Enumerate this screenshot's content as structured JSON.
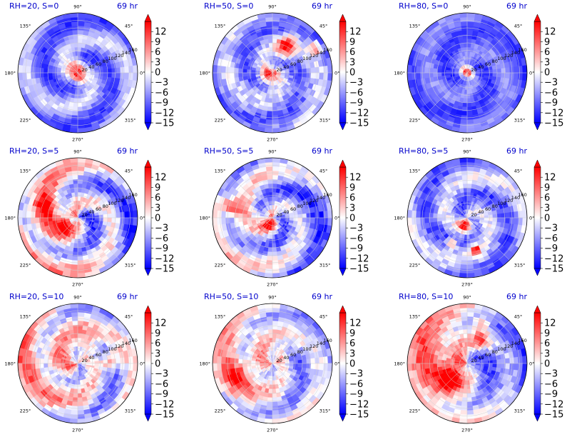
{
  "figure": {
    "title_color": "#0000cc",
    "colormap": [
      "#0000ff",
      "#ffffff",
      "#ff0000"
    ]
  },
  "chart_data": [
    {
      "type": "heatmap",
      "projection": "polar",
      "title_left": "RH=20, S=0",
      "title_right": "69 hr",
      "angle_labels": [
        "90°",
        "45°",
        "0°",
        "315°",
        "270°",
        "225°",
        "180°",
        "135°"
      ],
      "radial_ticks": [
        "20",
        "40",
        "60",
        "80",
        "100",
        "120",
        "140",
        "160"
      ],
      "colorbar": {
        "ticks": [
          12,
          9,
          6,
          3,
          0,
          -3,
          -6,
          -9,
          -12,
          -15
        ],
        "tick_labels": [
          "12",
          "9",
          "6",
          "3",
          "0",
          "−3",
          "−6",
          "−9",
          "−12",
          "−15"
        ],
        "range": [
          -15,
          15
        ],
        "extend": "both"
      },
      "field": {
        "mean_value": -7,
        "spiral_amplitude": 5,
        "background_noise": 2,
        "core_positive": [
          {
            "r": 0.1,
            "theta": 110,
            "value": 14,
            "radius": 0.09
          },
          {
            "r": 0.1,
            "theta": 290,
            "value": 14,
            "radius": 0.07
          }
        ]
      }
    },
    {
      "type": "heatmap",
      "projection": "polar",
      "title_left": "RH=50, S=0",
      "title_right": "69 hr",
      "angle_labels": [
        "90°",
        "45°",
        "0°",
        "315°",
        "270°",
        "225°",
        "180°",
        "135°"
      ],
      "radial_ticks": [
        "20",
        "40",
        "60",
        "80",
        "100",
        "120",
        "140",
        "160"
      ],
      "colorbar": {
        "ticks": [
          12,
          9,
          6,
          3,
          0,
          -3,
          -6,
          -9,
          -12,
          -15
        ],
        "tick_labels": [
          "12",
          "9",
          "6",
          "3",
          "0",
          "−3",
          "−6",
          "−9",
          "−12",
          "−15"
        ],
        "range": [
          -15,
          15
        ],
        "extend": "both"
      },
      "field": {
        "mean_value": -6,
        "spiral_amplitude": 4,
        "background_noise": 3,
        "core_positive": [
          {
            "r": 0.06,
            "theta": 225,
            "value": 14,
            "radius": 0.1
          },
          {
            "r": 0.5,
            "theta": 62,
            "value": 13,
            "radius": 0.12
          },
          {
            "r": 0.82,
            "theta": 30,
            "value": 12,
            "radius": 0.07
          }
        ]
      }
    },
    {
      "type": "heatmap",
      "projection": "polar",
      "title_left": "RH=80, S=0",
      "title_right": "69 hr",
      "angle_labels": [
        "90°",
        "45°",
        "0°",
        "315°",
        "270°",
        "225°",
        "180°",
        "135°"
      ],
      "radial_ticks": [
        "20",
        "40",
        "60",
        "80",
        "100",
        "120",
        "140",
        "160"
      ],
      "colorbar": {
        "ticks": [
          12,
          9,
          6,
          3,
          0,
          -3,
          -6,
          -9,
          -12,
          -15
        ],
        "tick_labels": [
          "12",
          "9",
          "6",
          "3",
          "0",
          "−3",
          "−6",
          "−9",
          "−12",
          "−15"
        ],
        "range": [
          -15,
          15
        ],
        "extend": "both"
      },
      "field": {
        "mean_value": -9,
        "spiral_amplitude": 3,
        "background_noise": 2,
        "core_positive": [
          {
            "r": 0.02,
            "theta": 90,
            "value": 12,
            "radius": 0.07
          }
        ]
      }
    },
    {
      "type": "heatmap",
      "projection": "polar",
      "title_left": "RH=20, S=5",
      "title_right": "69 hr",
      "angle_labels": [
        "90°",
        "45°",
        "0°",
        "315°",
        "270°",
        "225°",
        "180°",
        "135°"
      ],
      "radial_ticks": [
        "20",
        "40",
        "60",
        "80",
        "100",
        "120",
        "140",
        "160"
      ],
      "colorbar": {
        "ticks": [
          12,
          9,
          6,
          3,
          0,
          -3,
          -6,
          -9,
          -12,
          -15
        ],
        "tick_labels": [
          "12",
          "9",
          "6",
          "3",
          "0",
          "−3",
          "−6",
          "−9",
          "−12",
          "−15"
        ],
        "range": [
          -15,
          15
        ],
        "extend": "both"
      },
      "field": {
        "mean_value": -1,
        "spiral_amplitude": 7,
        "background_noise": 3,
        "left_right_bias": 5,
        "core_positive": [
          {
            "r": 0.25,
            "theta": 205,
            "value": 13,
            "radius": 0.1
          },
          {
            "r": 0.55,
            "theta": 160,
            "value": 9,
            "radius": 0.12
          }
        ]
      }
    },
    {
      "type": "heatmap",
      "projection": "polar",
      "title_left": "RH=50, S=5",
      "title_right": "69 hr",
      "angle_labels": [
        "90°",
        "45°",
        "0°",
        "315°",
        "270°",
        "225°",
        "180°",
        "135°"
      ],
      "radial_ticks": [
        "20",
        "40",
        "60",
        "80",
        "100",
        "120",
        "140",
        "160"
      ],
      "colorbar": {
        "ticks": [
          12,
          9,
          6,
          3,
          0,
          -3,
          -6,
          -9,
          -12,
          -15
        ],
        "tick_labels": [
          "12",
          "9",
          "6",
          "3",
          "0",
          "−3",
          "−6",
          "−9",
          "−12",
          "−15"
        ],
        "range": [
          -15,
          15
        ],
        "extend": "both"
      },
      "field": {
        "mean_value": -4,
        "spiral_amplitude": 6,
        "background_noise": 3,
        "left_right_bias": 3,
        "core_positive": [
          {
            "r": 0.1,
            "theta": 250,
            "value": 12,
            "radius": 0.1
          },
          {
            "r": 0.75,
            "theta": 165,
            "value": 9,
            "radius": 0.12
          }
        ]
      }
    },
    {
      "type": "heatmap",
      "projection": "polar",
      "title_left": "RH=80, S=5",
      "title_right": "69 hr",
      "angle_labels": [
        "90°",
        "45°",
        "0°",
        "315°",
        "270°",
        "225°",
        "180°",
        "135°"
      ],
      "radial_ticks": [
        "20",
        "40",
        "60",
        "80",
        "100",
        "120",
        "140",
        "160"
      ],
      "colorbar": {
        "ticks": [
          12,
          9,
          6,
          3,
          0,
          -3,
          -6,
          -9,
          -12,
          -15
        ],
        "tick_labels": [
          "12",
          "9",
          "6",
          "3",
          "0",
          "−3",
          "−6",
          "−9",
          "−12",
          "−15"
        ],
        "range": [
          -15,
          15
        ],
        "extend": "both"
      },
      "field": {
        "mean_value": -6,
        "spiral_amplitude": 5,
        "background_noise": 3,
        "core_positive": [
          {
            "r": 0.15,
            "theta": 260,
            "value": 14,
            "radius": 0.09
          },
          {
            "r": 0.55,
            "theta": 285,
            "value": 12,
            "radius": 0.06
          },
          {
            "r": 0.5,
            "theta": 240,
            "value": 12,
            "radius": 0.06
          }
        ]
      }
    },
    {
      "type": "heatmap",
      "projection": "polar",
      "title_left": "RH=20, S=10",
      "title_right": "69 hr",
      "angle_labels": [
        "90°",
        "45°",
        "0°",
        "315°",
        "270°",
        "225°",
        "180°",
        "135°"
      ],
      "radial_ticks": [
        "20",
        "40",
        "60",
        "80",
        "100",
        "120",
        "140",
        "160"
      ],
      "colorbar": {
        "ticks": [
          12,
          9,
          6,
          3,
          0,
          -3,
          -6,
          -9,
          -12,
          -15
        ],
        "tick_labels": [
          "12",
          "9",
          "6",
          "3",
          "0",
          "−3",
          "−6",
          "−9",
          "−12",
          "−15"
        ],
        "range": [
          -15,
          15
        ],
        "extend": "both"
      },
      "field": {
        "mean_value": 0,
        "spiral_amplitude": 6,
        "background_noise": 3,
        "left_right_bias": 4,
        "core_positive": [
          {
            "r": 0.55,
            "theta": 5,
            "value": 14,
            "radius": 0.12
          },
          {
            "r": 0.35,
            "theta": 60,
            "value": 10,
            "radius": 0.12
          }
        ]
      }
    },
    {
      "type": "heatmap",
      "projection": "polar",
      "title_left": "RH=50, S=10",
      "title_right": "69 hr",
      "angle_labels": [
        "90°",
        "45°",
        "0°",
        "315°",
        "270°",
        "225°",
        "180°",
        "135°"
      ],
      "radial_ticks": [
        "20",
        "40",
        "60",
        "80",
        "100",
        "120",
        "140",
        "160"
      ],
      "colorbar": {
        "ticks": [
          12,
          9,
          6,
          3,
          0,
          -3,
          -6,
          -9,
          -12,
          -15
        ],
        "tick_labels": [
          "12",
          "9",
          "6",
          "3",
          "0",
          "−3",
          "−6",
          "−9",
          "−12",
          "−15"
        ],
        "range": [
          -15,
          15
        ],
        "extend": "both"
      },
      "field": {
        "mean_value": -1,
        "spiral_amplitude": 5,
        "background_noise": 3,
        "left_right_bias": 4,
        "core_positive": [
          {
            "r": 0.2,
            "theta": 40,
            "value": 10,
            "radius": 0.1
          },
          {
            "r": 0.6,
            "theta": 200,
            "value": 9,
            "radius": 0.15
          }
        ]
      }
    },
    {
      "type": "heatmap",
      "projection": "polar",
      "title_left": "RH=80, S=10",
      "title_right": "69 hr",
      "angle_labels": [
        "90°",
        "45°",
        "0°",
        "315°",
        "270°",
        "225°",
        "180°",
        "135°"
      ],
      "radial_ticks": [
        "20",
        "40",
        "60",
        "80",
        "100",
        "120",
        "140",
        "160"
      ],
      "colorbar": {
        "ticks": [
          12,
          9,
          6,
          3,
          0,
          -3,
          -6,
          -9,
          -12,
          -15
        ],
        "tick_labels": [
          "12",
          "9",
          "6",
          "3",
          "0",
          "−3",
          "−6",
          "−9",
          "−12",
          "−15"
        ],
        "range": [
          -15,
          15
        ],
        "extend": "both"
      },
      "field": {
        "mean_value": 0,
        "spiral_amplitude": 4,
        "background_noise": 3,
        "left_right_bias": 8,
        "core_positive": [
          {
            "r": 0.35,
            "theta": 220,
            "value": 14,
            "radius": 0.14
          },
          {
            "r": 0.45,
            "theta": 60,
            "value": 13,
            "radius": 0.1
          },
          {
            "r": 0.7,
            "theta": 70,
            "value": 12,
            "radius": 0.08
          }
        ]
      }
    }
  ]
}
